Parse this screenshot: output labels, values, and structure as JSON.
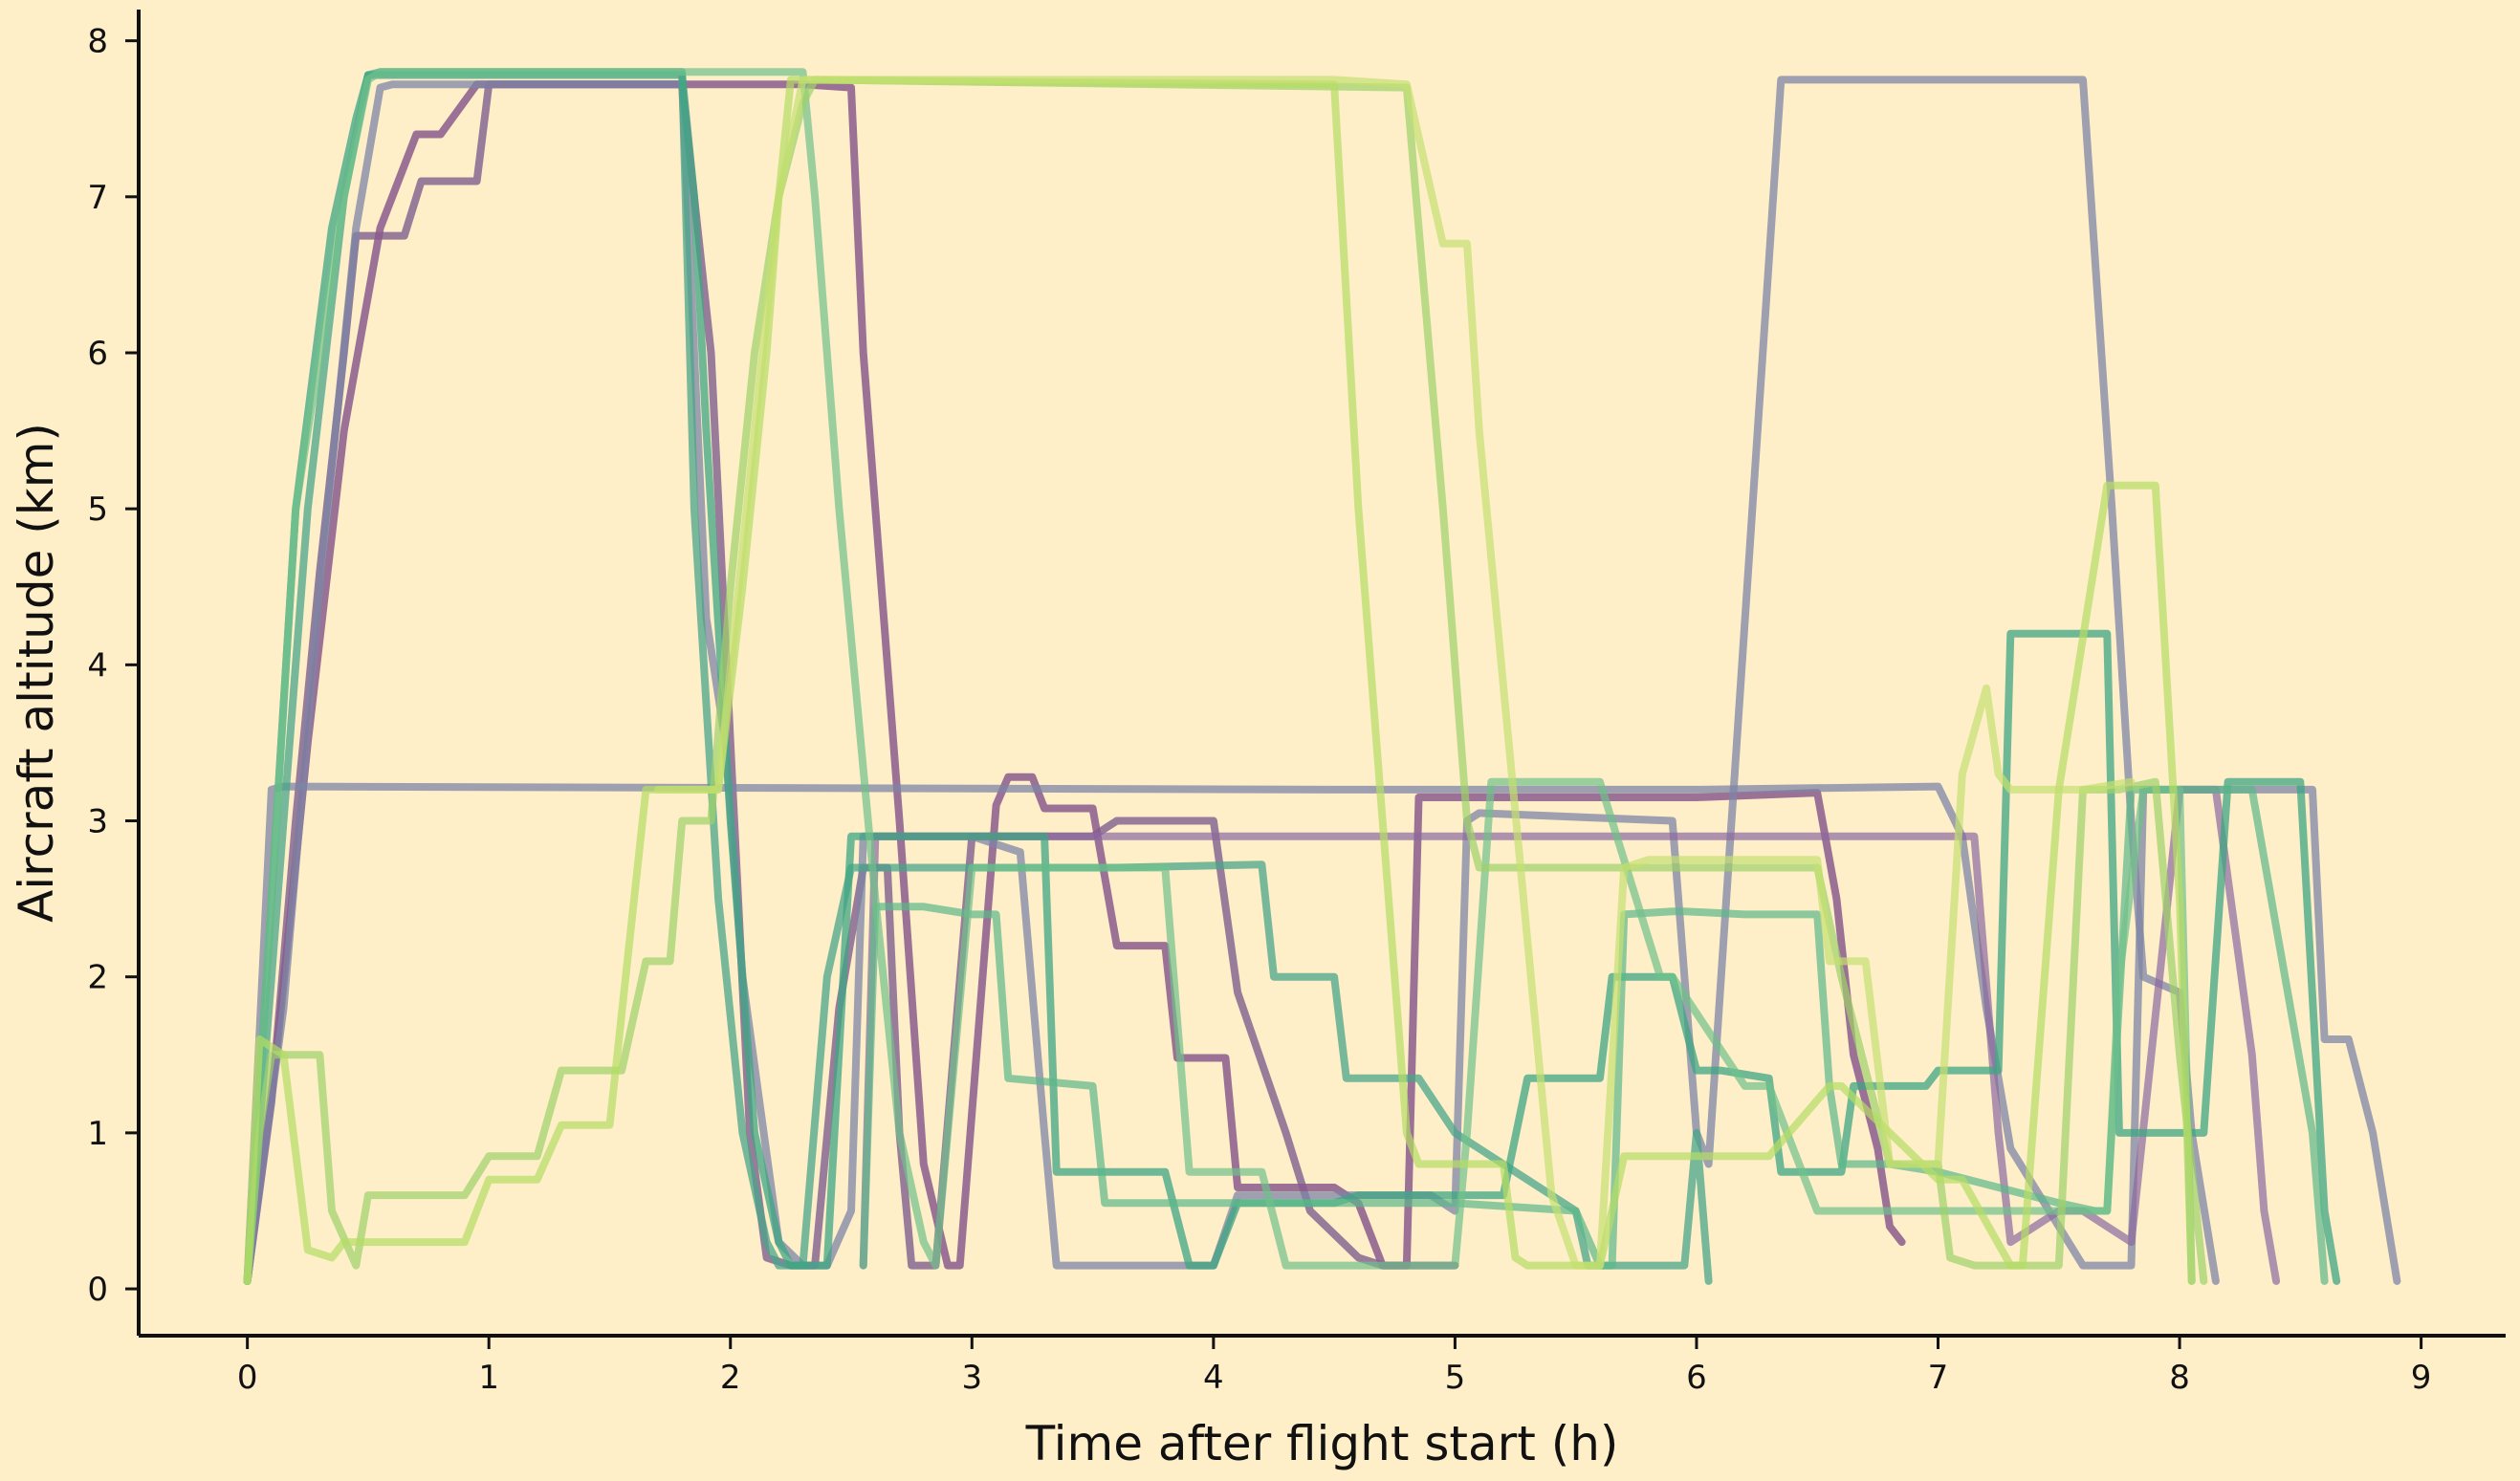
{
  "chart_data": {
    "type": "line",
    "title": "",
    "xlabel": "Time after flight start (h)",
    "ylabel": "Aircraft altitude (km)",
    "xlim": [
      -0.45,
      9.35
    ],
    "ylim": [
      -0.3,
      8.2
    ],
    "xticks": [
      0,
      1,
      2,
      3,
      4,
      5,
      6,
      7,
      8,
      9
    ],
    "yticks": [
      0,
      1,
      2,
      3,
      4,
      5,
      6,
      7,
      8
    ],
    "grid": false,
    "legend": "none",
    "background": "#feefc9",
    "series": [
      {
        "color": "#7f5e8f",
        "opacity": 0.8,
        "x": [
          0,
          0.1,
          0.2,
          0.3,
          0.4,
          0.45,
          0.65,
          0.72,
          0.95,
          1.0,
          1.8,
          1.92,
          2.0,
          2.08,
          2.15,
          2.25,
          2.35,
          2.45,
          2.55,
          2.65,
          2.7,
          2.75,
          2.85,
          3.0,
          3.5,
          3.6,
          4.0,
          4.1,
          4.3,
          4.4,
          4.6,
          4.7,
          4.9,
          5.0
        ],
        "y": [
          0.05,
          1.2,
          3.0,
          4.6,
          6.0,
          6.75,
          6.75,
          7.1,
          7.1,
          7.72,
          7.72,
          6.0,
          3.5,
          1.0,
          0.2,
          0.15,
          0.15,
          1.8,
          2.7,
          2.7,
          1.0,
          0.15,
          0.15,
          2.9,
          2.9,
          3.0,
          3.0,
          1.9,
          1.0,
          0.5,
          0.2,
          0.15,
          0.15,
          0.15
        ]
      },
      {
        "color": "#8a5a8c",
        "opacity": 0.85,
        "x": [
          0,
          0.12,
          0.25,
          0.4,
          0.55,
          0.7,
          0.8,
          0.95,
          1.0,
          2.0,
          2.1,
          2.2,
          2.3,
          2.5,
          2.55,
          2.7,
          2.8,
          2.9,
          2.95,
          3.1,
          3.15,
          3.25,
          3.3,
          3.5,
          3.6,
          3.8,
          3.85,
          4.05,
          4.1,
          4.35,
          4.4,
          4.5,
          4.6,
          4.7,
          4.8,
          4.85,
          4.95,
          5.05,
          6.0,
          6.5,
          6.58,
          6.65,
          6.75,
          6.8,
          6.85
        ],
        "y": [
          0.05,
          1.5,
          3.5,
          5.5,
          6.8,
          7.4,
          7.4,
          7.72,
          7.72,
          7.72,
          7.72,
          7.72,
          7.72,
          7.7,
          6.0,
          3.0,
          0.8,
          0.15,
          0.15,
          3.1,
          3.28,
          3.28,
          3.08,
          3.08,
          2.2,
          2.2,
          1.48,
          1.48,
          0.65,
          0.65,
          0.65,
          0.65,
          0.55,
          0.15,
          0.15,
          3.15,
          3.15,
          3.15,
          3.15,
          3.18,
          2.5,
          1.5,
          0.9,
          0.4,
          0.3
        ]
      },
      {
        "color": "#7e84a6",
        "opacity": 0.75,
        "x": [
          0,
          0.15,
          0.3,
          0.45,
          0.55,
          0.6,
          0.65,
          1.8,
          1.85,
          1.9,
          1.98,
          2.05,
          2.12,
          2.2,
          2.3,
          2.4,
          2.5,
          2.55,
          3.0,
          3.2,
          3.3,
          3.35,
          3.45,
          3.9,
          4.0,
          4.1,
          4.9,
          5.0,
          5.05,
          5.1,
          5.9,
          6.0,
          6.05,
          6.35,
          7.6,
          7.72,
          7.8,
          7.85,
          8.0,
          8.05,
          8.15
        ],
        "y": [
          0.05,
          1.8,
          4.5,
          6.8,
          7.7,
          7.72,
          7.72,
          7.72,
          6.0,
          4.3,
          3.5,
          2.0,
          1.2,
          0.3,
          0.15,
          0.15,
          0.5,
          2.9,
          2.9,
          2.8,
          1.0,
          0.15,
          0.15,
          0.15,
          0.15,
          0.6,
          0.6,
          0.5,
          3.0,
          3.05,
          3.0,
          1.0,
          0.8,
          7.75,
          7.75,
          5.0,
          3.0,
          2.0,
          1.9,
          1.0,
          0.05
        ]
      },
      {
        "color": "#7e84a6",
        "opacity": 0.75,
        "x": [
          0,
          0.1,
          0.15,
          4.5,
          6.0,
          7.0,
          7.1,
          7.2,
          7.3,
          7.6,
          7.8,
          7.85,
          8.0,
          8.15,
          8.3,
          8.55,
          8.6,
          8.7,
          8.8,
          8.9
        ],
        "y": [
          0.05,
          3.2,
          3.22,
          3.2,
          3.2,
          3.22,
          2.9,
          1.8,
          0.9,
          0.15,
          0.15,
          3.2,
          3.2,
          3.2,
          3.2,
          3.2,
          1.6,
          1.6,
          1.0,
          0.05
        ]
      },
      {
        "color": "#8c6aa0",
        "opacity": 0.7,
        "x": [
          2.55,
          2.6,
          2.9,
          4.5,
          5.5,
          6.0,
          6.6,
          6.7,
          6.8,
          7.0,
          7.15,
          7.25,
          7.3,
          7.5,
          7.6,
          7.8,
          8.0,
          8.15,
          8.3,
          8.35,
          8.4
        ],
        "y": [
          0.15,
          2.9,
          2.9,
          2.9,
          2.9,
          2.9,
          2.9,
          2.9,
          2.9,
          2.9,
          2.9,
          1.0,
          0.3,
          0.5,
          0.5,
          0.3,
          3.2,
          3.2,
          1.5,
          0.5,
          0.05
        ]
      },
      {
        "color": "#4aa58a",
        "opacity": 0.75,
        "x": [
          0,
          0.1,
          0.25,
          0.4,
          0.5,
          0.55,
          1.0,
          1.8,
          1.85,
          1.95,
          2.05,
          2.15,
          2.2,
          2.3,
          2.4,
          2.5,
          3.0,
          3.5,
          3.6,
          4.2,
          4.25,
          4.5,
          4.55,
          4.75,
          4.85,
          5.0,
          5.5,
          5.55,
          5.6,
          5.95,
          6.0,
          6.05
        ],
        "y": [
          0.05,
          2.0,
          5.0,
          7.0,
          7.78,
          7.8,
          7.8,
          7.8,
          5.0,
          2.5,
          1.0,
          0.3,
          0.15,
          0.15,
          2.0,
          2.7,
          2.7,
          2.7,
          2.7,
          2.72,
          2.0,
          2.0,
          1.35,
          1.35,
          1.35,
          1.0,
          0.5,
          0.15,
          0.15,
          0.15,
          1.0,
          0.05
        ]
      },
      {
        "color": "#3fa583",
        "opacity": 0.75,
        "x": [
          0,
          0.1,
          0.2,
          0.35,
          0.45,
          0.5,
          1.8,
          1.85,
          1.9,
          2.0,
          2.1,
          2.2,
          2.25,
          2.4,
          2.5,
          3.0,
          3.3,
          3.35,
          3.8,
          3.9,
          4.0,
          4.1,
          4.3,
          4.5,
          4.6,
          5.0,
          5.2,
          5.3,
          5.6,
          5.65,
          5.9,
          6.0,
          6.1,
          6.3,
          6.35,
          6.6,
          6.65,
          6.95,
          7.0,
          7.25,
          7.3,
          7.7,
          7.75,
          8.1,
          8.2,
          8.5,
          8.6,
          8.65
        ],
        "y": [
          0.05,
          2.5,
          5.0,
          6.8,
          7.5,
          7.78,
          7.78,
          7.0,
          5.5,
          3.0,
          1.0,
          0.3,
          0.15,
          0.15,
          2.9,
          2.9,
          2.9,
          0.75,
          0.75,
          0.15,
          0.15,
          0.55,
          0.55,
          0.55,
          0.6,
          0.6,
          0.6,
          1.35,
          1.35,
          2.0,
          2.0,
          1.4,
          1.4,
          1.35,
          0.75,
          0.75,
          1.3,
          1.3,
          1.4,
          1.4,
          4.2,
          4.2,
          1.0,
          1.0,
          3.25,
          3.25,
          0.5,
          0.05
        ]
      },
      {
        "color": "#5cb88a",
        "opacity": 0.7,
        "x": [
          2.55,
          2.6,
          2.8,
          3.0,
          3.1,
          3.15,
          3.5,
          3.55,
          3.65,
          4.0,
          4.5,
          4.9,
          5.0,
          5.5,
          5.6,
          5.65,
          5.7,
          5.9,
          5.95,
          6.2,
          6.3,
          6.5,
          6.55,
          6.6,
          6.8,
          7.0,
          7.5,
          7.65,
          7.7,
          7.8,
          8.2,
          8.3,
          8.55,
          8.6
        ],
        "y": [
          0.15,
          2.45,
          2.45,
          2.4,
          2.4,
          1.35,
          1.3,
          0.55,
          0.55,
          0.55,
          0.55,
          0.55,
          0.55,
          0.5,
          0.15,
          0.15,
          2.4,
          2.42,
          2.42,
          2.4,
          2.4,
          2.4,
          1.3,
          0.8,
          0.8,
          0.75,
          0.55,
          0.5,
          0.5,
          3.2,
          3.2,
          3.2,
          1.0,
          0.05
        ]
      },
      {
        "color": "#6fc08a",
        "opacity": 0.7,
        "x": [
          0,
          0.1,
          0.2,
          0.4,
          0.5,
          0.55,
          2.3,
          2.35,
          2.45,
          2.6,
          2.7,
          2.8,
          2.85,
          3.0,
          3.5,
          3.8,
          3.9,
          4.2,
          4.3,
          4.7,
          4.8,
          5.0,
          5.05,
          5.15,
          5.5,
          5.6,
          5.85,
          5.9,
          6.2,
          6.3,
          6.5,
          6.6,
          7.0,
          7.1,
          7.7,
          7.75,
          7.85,
          8.0,
          8.05
        ],
        "y": [
          0.05,
          2.5,
          5.0,
          7.0,
          7.75,
          7.8,
          7.8,
          7.0,
          5.0,
          2.5,
          1.0,
          0.3,
          0.15,
          2.7,
          2.7,
          2.7,
          0.75,
          0.75,
          0.15,
          0.15,
          0.15,
          0.15,
          1.0,
          3.25,
          3.25,
          3.25,
          2.0,
          2.0,
          1.3,
          1.3,
          0.5,
          0.5,
          0.5,
          0.5,
          0.5,
          2.0,
          3.2,
          3.2,
          0.05
        ]
      },
      {
        "color": "#9ed26a",
        "opacity": 0.7,
        "x": [
          0,
          0.05,
          0.1,
          0.3,
          0.35,
          0.45,
          0.5,
          0.9,
          1.0,
          1.2,
          1.3,
          1.55,
          1.65,
          1.75,
          1.8,
          1.92,
          2.0,
          2.1,
          2.2,
          2.3,
          2.35,
          4.8,
          4.85,
          4.95,
          5.05,
          5.1,
          5.5,
          5.6,
          6.0,
          6.5,
          6.6,
          6.8,
          7.0,
          7.05,
          7.15,
          7.5,
          7.6,
          7.75,
          7.9,
          8.0,
          8.1
        ],
        "y": [
          0.05,
          1.0,
          1.5,
          1.5,
          0.5,
          0.15,
          0.6,
          0.6,
          0.85,
          0.85,
          1.4,
          1.4,
          2.1,
          2.1,
          3.0,
          3.0,
          4.5,
          6.0,
          7.0,
          7.6,
          7.75,
          7.7,
          6.8,
          5.0,
          3.0,
          2.7,
          2.7,
          2.7,
          2.7,
          2.7,
          2.0,
          0.8,
          0.8,
          0.2,
          0.15,
          0.15,
          3.2,
          3.2,
          3.25,
          1.5,
          0.05
        ]
      },
      {
        "color": "#b5dd64",
        "opacity": 0.7,
        "x": [
          0,
          0.05,
          0.15,
          0.25,
          0.35,
          0.4,
          0.6,
          0.9,
          1.0,
          1.2,
          1.3,
          1.5,
          1.65,
          1.75,
          1.95,
          2.05,
          2.15,
          2.2,
          2.25,
          4.5,
          4.6,
          4.8,
          4.85,
          5.2,
          5.25,
          5.3,
          5.6,
          5.7,
          6.0,
          6.05,
          6.3,
          6.55,
          6.6,
          7.0,
          7.1,
          7.3,
          7.35,
          7.5,
          7.7,
          7.8,
          7.9,
          8.0,
          8.05
        ],
        "y": [
          0.05,
          1.6,
          1.5,
          0.25,
          0.2,
          0.3,
          0.3,
          0.3,
          0.7,
          0.7,
          1.05,
          1.05,
          3.2,
          3.2,
          3.2,
          4.5,
          6.0,
          7.0,
          7.75,
          7.72,
          5.0,
          1.0,
          0.8,
          0.8,
          0.2,
          0.15,
          0.15,
          0.85,
          0.85,
          0.85,
          0.85,
          1.3,
          1.3,
          0.7,
          0.7,
          0.15,
          0.15,
          3.2,
          5.15,
          5.15,
          5.15,
          2.5,
          0.05
        ]
      },
      {
        "color": "#c5e070",
        "opacity": 0.7,
        "x": [
          1.7,
          1.8,
          1.95,
          2.1,
          2.2,
          2.3,
          4.5,
          4.8,
          4.95,
          5.05,
          5.1,
          5.4,
          5.5,
          5.6,
          5.7,
          5.8,
          6.4,
          6.5,
          6.55,
          6.7,
          6.8,
          7.0,
          7.1,
          7.2,
          7.25,
          7.3,
          7.5,
          7.6,
          7.8
        ],
        "y": [
          3.2,
          3.2,
          3.2,
          5.5,
          7.0,
          7.75,
          7.75,
          7.72,
          6.7,
          6.7,
          5.5,
          0.6,
          0.15,
          0.15,
          2.7,
          2.75,
          2.75,
          2.75,
          2.1,
          2.1,
          0.8,
          0.8,
          3.3,
          3.85,
          3.3,
          3.2,
          3.2,
          3.2,
          3.25
        ]
      }
    ]
  }
}
